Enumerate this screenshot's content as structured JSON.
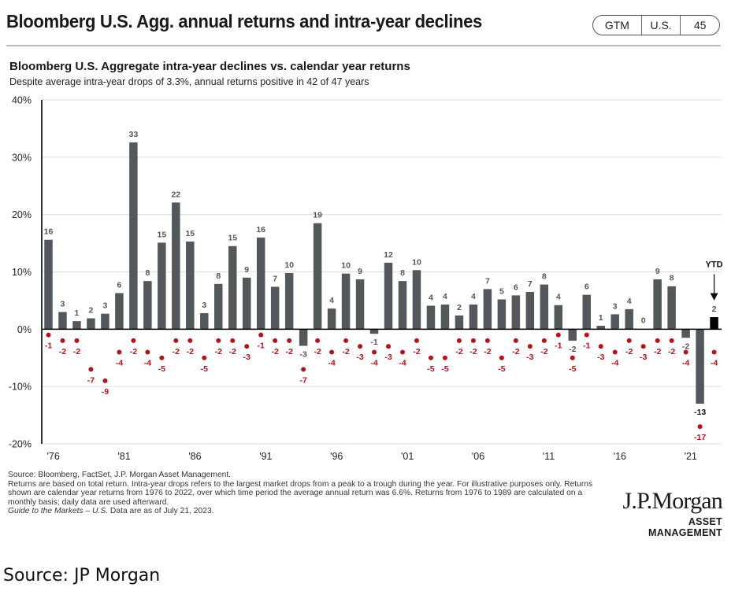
{
  "header": {
    "title": "Bloomberg U.S. Agg. annual returns and intra-year declines",
    "badge": [
      "GTM",
      "U.S.",
      "45"
    ]
  },
  "footer": {
    "source": "Source: Bloomberg, FactSet, J.P. Morgan Asset Management.",
    "note": "Returns are based on total return. Intra-year drops refers to the largest market drops from a peak to a trough during the year. For illustrative purposes only. Returns shown are calendar year returns from 1976 to 2022, over which time period the average annual return was 6.6%. Returns from 1976 to 1989 are calculated on a monthly basis; daily data are used afterward.",
    "guide_italic": "Guide to the Markets – U.S.",
    "guide_rest": " Data are as of July 21, 2023."
  },
  "logo": {
    "name": "J.P.Morgan",
    "sub": "ASSET MANAGEMENT"
  },
  "caption": "Source: JP Morgan",
  "colors": {
    "bar": "#54585b",
    "bar_ytd": "#000000",
    "dot": "#b5121b",
    "bar_label": "#555555",
    "dot_label": "#b5121b"
  },
  "chart_data": {
    "type": "bar",
    "title": "Bloomberg U.S. Aggregate intra-year declines vs. calendar year returns",
    "subtitle": "Despite average intra-year drops of 3.3%, annual returns positive in 42 of 47 years",
    "xlabel": "",
    "ylabel": "",
    "ylim": [
      -20,
      40
    ],
    "yticks": [
      -20,
      -10,
      0,
      10,
      20,
      30,
      40
    ],
    "ytick_labels": [
      "-20%",
      "-10%",
      "0%",
      "10%",
      "20%",
      "30%",
      "40%"
    ],
    "grid": true,
    "xtick_labels": [
      {
        "year": 1976,
        "label": "'76"
      },
      {
        "year": 1981,
        "label": "'81"
      },
      {
        "year": 1986,
        "label": "'86"
      },
      {
        "year": 1991,
        "label": "'91"
      },
      {
        "year": 1996,
        "label": "'96"
      },
      {
        "year": 2001,
        "label": "'01"
      },
      {
        "year": 2006,
        "label": "'06"
      },
      {
        "year": 2011,
        "label": "'11"
      },
      {
        "year": 2016,
        "label": "'16"
      },
      {
        "year": 2021,
        "label": "'21"
      }
    ],
    "x": [
      1976,
      1977,
      1978,
      1979,
      1980,
      1981,
      1982,
      1983,
      1984,
      1985,
      1986,
      1987,
      1988,
      1989,
      1990,
      1991,
      1992,
      1993,
      1994,
      1995,
      1996,
      1997,
      1998,
      1999,
      2000,
      2001,
      2002,
      2003,
      2004,
      2005,
      2006,
      2007,
      2008,
      2009,
      2010,
      2011,
      2012,
      2013,
      2014,
      2015,
      2016,
      2017,
      2018,
      2019,
      2020,
      2021,
      2022,
      2023
    ],
    "series": [
      {
        "name": "Calendar year return",
        "style": "bar",
        "values": [
          15.6,
          3.0,
          1.4,
          1.9,
          2.7,
          6.3,
          32.6,
          8.4,
          15.1,
          22.1,
          15.3,
          2.8,
          7.9,
          14.5,
          9.0,
          16.0,
          7.4,
          9.8,
          -2.9,
          18.5,
          3.6,
          9.7,
          8.7,
          -0.8,
          11.6,
          8.4,
          10.3,
          4.1,
          4.3,
          2.4,
          4.3,
          7.0,
          5.2,
          5.9,
          6.5,
          7.8,
          4.2,
          -2.0,
          6.0,
          0.6,
          2.6,
          3.5,
          0.0,
          8.7,
          7.5,
          -1.5,
          -13.0,
          2.1
        ],
        "labels": [
          "16",
          "3",
          "1",
          "2",
          "3",
          "6",
          "33",
          "8",
          "15",
          "22",
          "15",
          "3",
          "8",
          "15",
          "9",
          "16",
          "7",
          "10",
          "-3",
          "19",
          "4",
          "10",
          "9",
          "-1",
          "12",
          "8",
          "10",
          "4",
          "4",
          "2",
          "4",
          "7",
          "5",
          "6",
          "7",
          "8",
          "4",
          "-2",
          "6",
          "1",
          "3",
          "4",
          "0",
          "9",
          "8",
          "-2",
          "-13",
          "2"
        ]
      },
      {
        "name": "Intra-year decline",
        "style": "dot",
        "values": [
          -1,
          -2,
          -2,
          -7,
          -9,
          -4,
          -2,
          -4,
          -5,
          -2,
          -2,
          -5,
          -2,
          -2,
          -3,
          -1,
          -2,
          -2,
          -7,
          -2,
          -4,
          -2,
          -3,
          -4,
          -3,
          -4,
          -2,
          -5,
          -5,
          -2,
          -2,
          -2,
          -5,
          -2,
          -3,
          -2,
          -1,
          -5,
          -1,
          -3,
          -4,
          -2,
          -3,
          -2,
          -2,
          -4,
          -17,
          -4
        ],
        "labels": [
          "-1",
          "-2",
          "-2",
          "-7",
          "-9",
          "-4",
          "-2",
          "-4",
          "-5",
          "-2",
          "-2",
          "-5",
          "-2",
          "-2",
          "-3",
          "-1",
          "-2",
          "-2",
          "-7",
          "-2",
          "-4",
          "-2",
          "-3",
          "-4",
          "-3",
          "-4",
          "-2",
          "-5",
          "-5",
          "-2",
          "-2",
          "-2",
          "-5",
          "-2",
          "-3",
          "-2",
          "-1",
          "-5",
          "-1",
          "-3",
          "-4",
          "-2",
          "-3",
          "-2",
          "-2",
          "-4",
          "-17",
          "-4"
        ]
      }
    ],
    "annotations": [
      {
        "year": 2023,
        "text": "YTD",
        "arrow": "down"
      }
    ]
  }
}
